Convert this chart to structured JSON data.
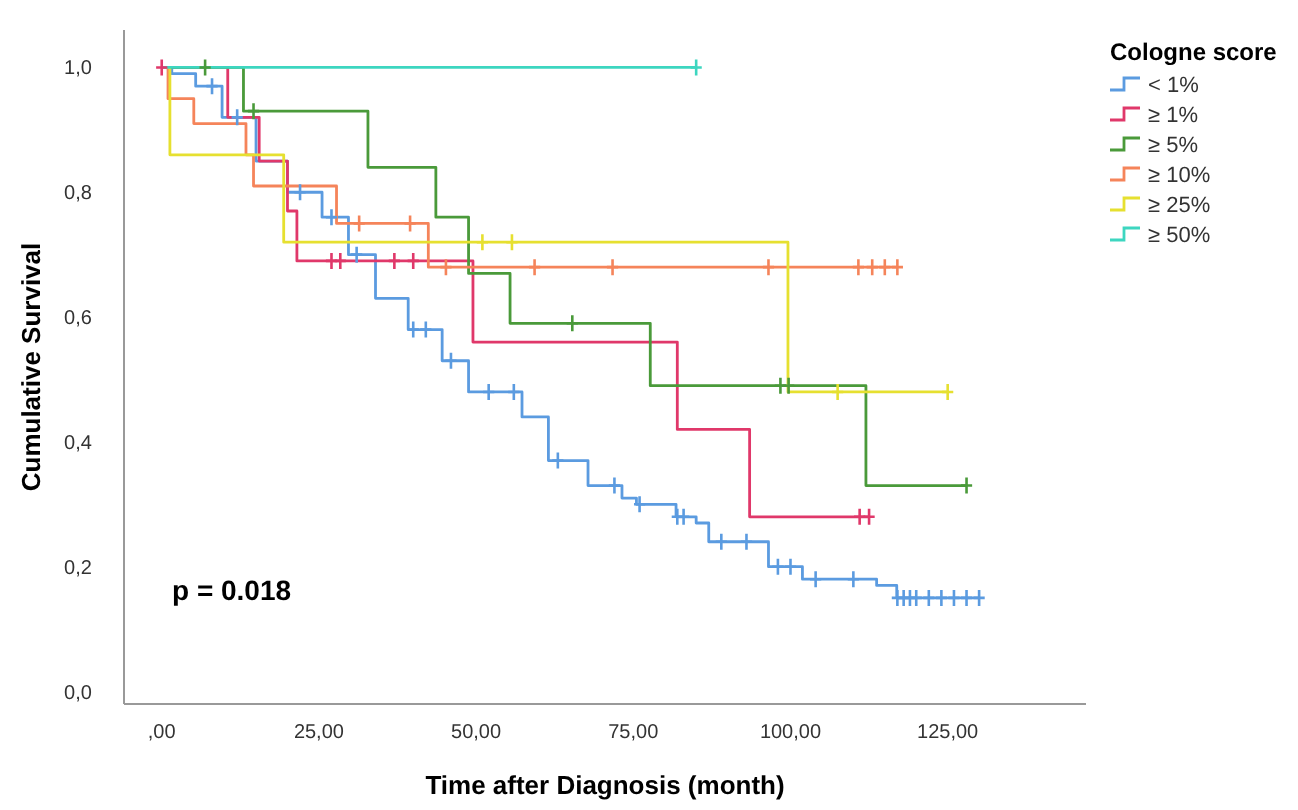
{
  "chart_data": {
    "type": "step",
    "xlabel": "Time after Diagnosis (month)",
    "ylabel": "Cumulative Survival",
    "legend_title": "Cologne score",
    "legend": "right",
    "grid": false,
    "line_style": "solid",
    "xlim": [
      -6,
      147
    ],
    "ylim": [
      -0.02,
      1.06
    ],
    "xticks": [
      {
        "value": 0,
        "label": ",00"
      },
      {
        "value": 25,
        "label": "25,00"
      },
      {
        "value": 50,
        "label": "50,00"
      },
      {
        "value": 75,
        "label": "75,00"
      },
      {
        "value": 100,
        "label": "100,00"
      },
      {
        "value": 125,
        "label": "125,00"
      }
    ],
    "yticks": [
      {
        "value": 0,
        "label": "0,0"
      },
      {
        "value": 0.2,
        "label": "0,2"
      },
      {
        "value": 0.4,
        "label": "0,4"
      },
      {
        "value": 0.6,
        "label": "0,6"
      },
      {
        "value": 0.8,
        "label": "0,8"
      },
      {
        "value": 1,
        "label": "1,0"
      }
    ],
    "annotations": [
      "p = 0.018"
    ],
    "series": [
      {
        "name": "< 1%",
        "color": "#5b9be0",
        "x": [
          0,
          1.6,
          5.4,
          9.6,
          15,
          20,
          25.5,
          29.7,
          34,
          39.2,
          44.6,
          48.8,
          57.3,
          61.5,
          67.8,
          73.2,
          75.5,
          81.8,
          85,
          87,
          96.5,
          101.9,
          113.7,
          116.9,
          130
        ],
        "values": [
          1,
          0.99,
          0.97,
          0.92,
          0.85,
          0.8,
          0.76,
          0.7,
          0.63,
          0.58,
          0.53,
          0.48,
          0.44,
          0.37,
          0.33,
          0.31,
          0.3,
          0.28,
          0.27,
          0.24,
          0.2,
          0.18,
          0.17,
          0.15,
          0.15
        ]
      },
      {
        "name": "≥ 1%",
        "color": "#e0386a",
        "x": [
          0,
          10.5,
          15.5,
          20,
          21.5,
          49.5,
          82,
          93.5,
          112.5
        ],
        "values": [
          1,
          0.92,
          0.85,
          0.77,
          0.69,
          0.56,
          0.42,
          0.28,
          0.28
        ]
      },
      {
        "name": "≥ 5%",
        "color": "#4a9a3a",
        "x": [
          0,
          13,
          32.8,
          43.6,
          48.8,
          55.4,
          77.7,
          112,
          128
        ],
        "values": [
          1,
          0.93,
          0.84,
          0.76,
          0.67,
          0.59,
          0.49,
          0.33,
          0.33
        ]
      },
      {
        "name": "≥ 10%",
        "color": "#f5845a",
        "x": [
          0,
          1,
          5.1,
          13.4,
          14.6,
          27.8,
          42.4,
          117
        ],
        "values": [
          1,
          0.95,
          0.91,
          0.86,
          0.81,
          0.75,
          0.68,
          0.68
        ]
      },
      {
        "name": "≥ 25%",
        "color": "#e6e030",
        "x": [
          0,
          1.3,
          19.4,
          99.6,
          125
        ],
        "values": [
          1,
          0.86,
          0.72,
          0.48,
          0.48
        ]
      },
      {
        "name": "≥ 50%",
        "color": "#3dd6c0",
        "x": [
          0,
          85
        ],
        "values": [
          1,
          1
        ]
      },
      {
        "type": "scatter",
        "marker": "cross",
        "color": "#5b9be0",
        "x": [
          8,
          12,
          22,
          27,
          31,
          40,
          42,
          46,
          52,
          56,
          63,
          72,
          76,
          82,
          83,
          89,
          93,
          98,
          100,
          104,
          110,
          117,
          118,
          119,
          120,
          122,
          124,
          126,
          128,
          130
        ],
        "values": [
          0.97,
          0.92,
          0.8,
          0.76,
          0.7,
          0.58,
          0.58,
          0.53,
          0.48,
          0.48,
          0.37,
          0.33,
          0.3,
          0.28,
          0.28,
          0.24,
          0.24,
          0.2,
          0.2,
          0.18,
          0.18,
          0.15,
          0.15,
          0.15,
          0.15,
          0.15,
          0.15,
          0.15,
          0.15,
          0.15
        ]
      },
      {
        "type": "scatter",
        "marker": "cross",
        "color": "#e0386a",
        "x": [
          0,
          27,
          28.4,
          37,
          40,
          111,
          112.5
        ],
        "values": [
          1,
          0.69,
          0.69,
          0.69,
          0.69,
          0.28,
          0.28
        ]
      },
      {
        "type": "scatter",
        "marker": "cross",
        "color": "#4a9a3a",
        "x": [
          6.9,
          14.6,
          65.3,
          98.4,
          99.7,
          128
        ],
        "values": [
          1,
          0.93,
          0.59,
          0.49,
          0.49,
          0.33
        ]
      },
      {
        "type": "scatter",
        "marker": "cross",
        "color": "#f5845a",
        "x": [
          31.4,
          39.5,
          45.2,
          59.3,
          71.7,
          96.5,
          110.8,
          113,
          115,
          117
        ],
        "values": [
          0.75,
          0.75,
          0.68,
          0.68,
          0.68,
          0.68,
          0.68,
          0.68,
          0.68,
          0.68
        ]
      },
      {
        "type": "scatter",
        "marker": "cross",
        "color": "#e6e030",
        "x": [
          51,
          55.7,
          107.5,
          125
        ],
        "values": [
          0.72,
          0.72,
          0.48,
          0.48
        ]
      },
      {
        "type": "scatter",
        "marker": "cross",
        "color": "#3dd6c0",
        "x": [
          85
        ],
        "values": [
          1
        ]
      }
    ]
  }
}
